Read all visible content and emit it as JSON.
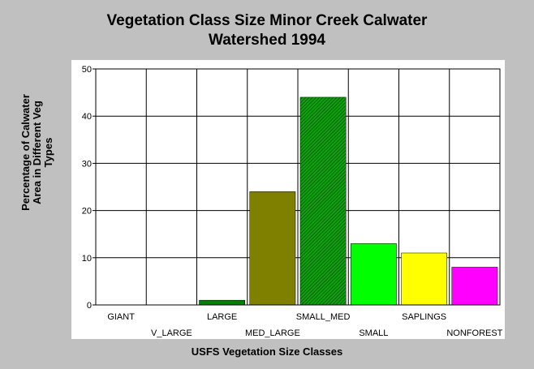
{
  "chart_data": {
    "type": "bar",
    "title": [
      "Vegetation Class Size Minor Creek Calwater",
      "Watershed 1994"
    ],
    "xlabel": "USFS Vegetation Size Classes",
    "ylabel": [
      "Percentage of Calwater",
      "Area in Different Veg",
      "Types"
    ],
    "categories": [
      "GIANT",
      "V_LARGE",
      "LARGE",
      "MED_LARGE",
      "SMALL_MED",
      "SMALL",
      "SAPLINGS",
      "NONFOREST"
    ],
    "values": [
      0,
      0,
      1,
      24,
      44,
      13,
      11,
      8
    ],
    "colors": [
      "#ff0000",
      "#0000ff",
      "#008000",
      "#808000",
      "#0a8a0a",
      "#00ff00",
      "#ffff00",
      "#ff00ff"
    ],
    "hatched": [
      false,
      false,
      false,
      false,
      true,
      false,
      false,
      false
    ],
    "ylim": [
      0,
      50
    ],
    "yticks": [
      0,
      10,
      20,
      30,
      40,
      50
    ],
    "grid": true
  }
}
